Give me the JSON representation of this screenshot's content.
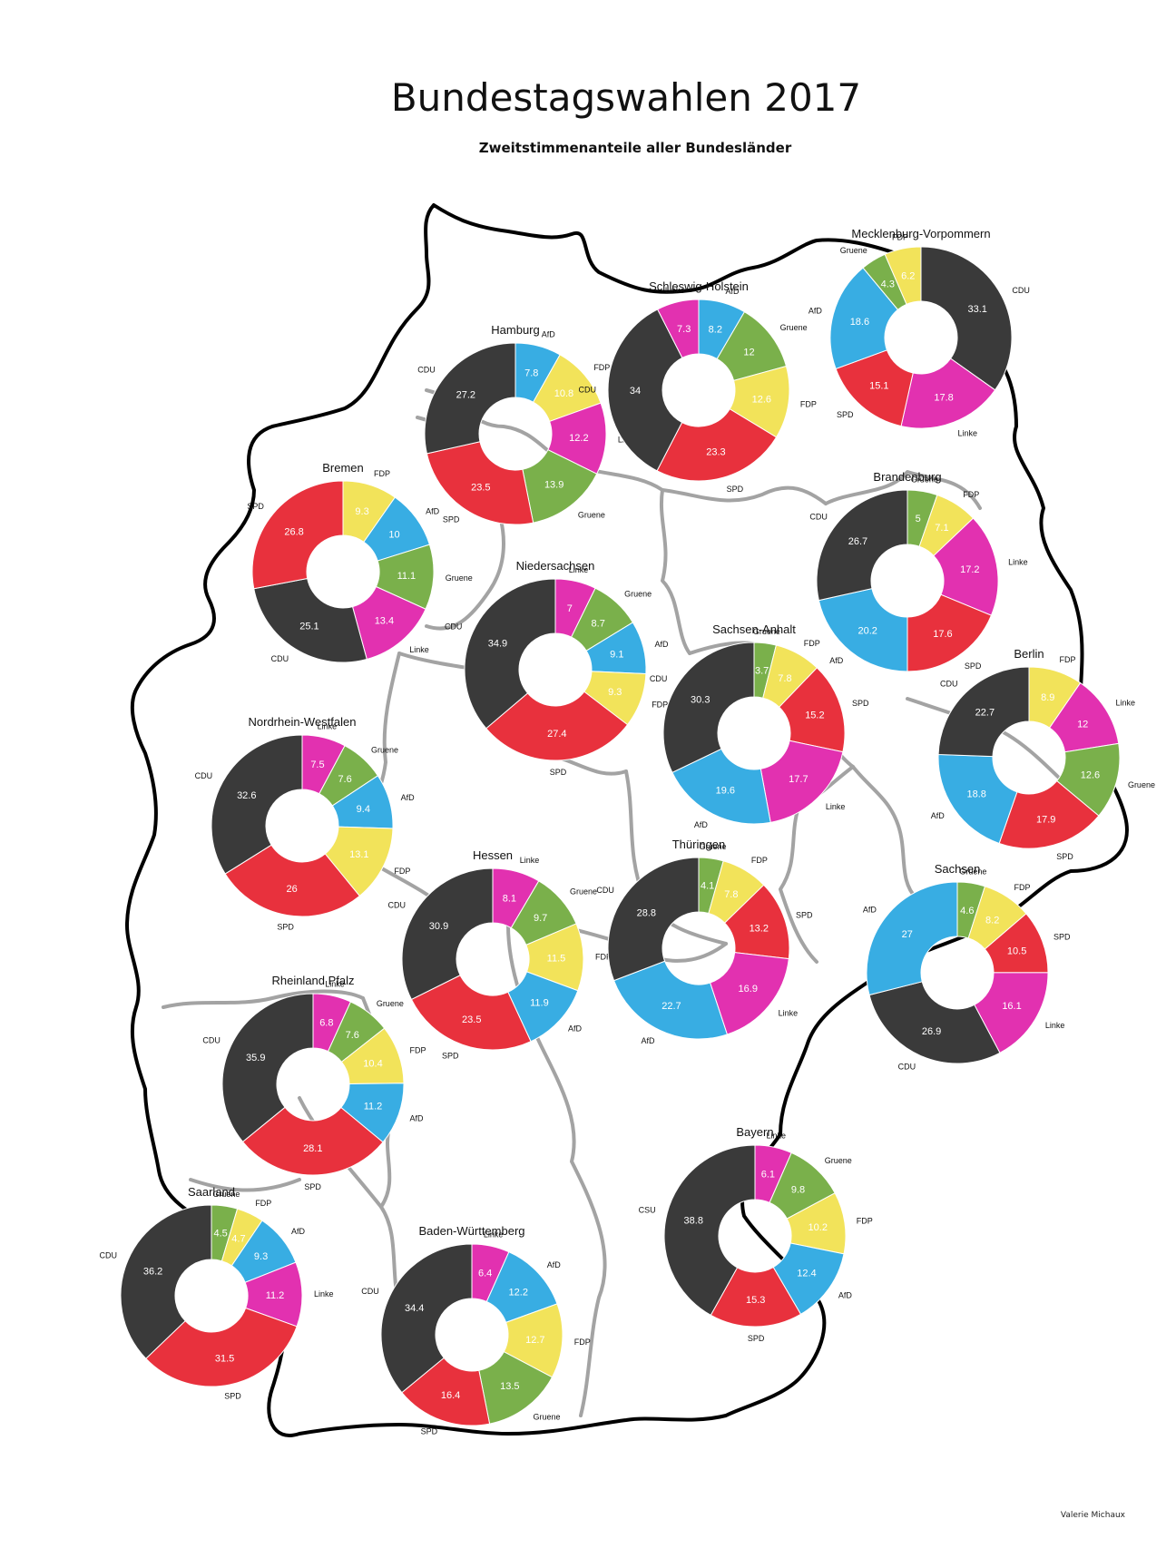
{
  "title": "Bundestagswahlen 2017",
  "subtitle": "Zweitstimmenanteile aller Bundesländer",
  "credit": "Valerie Michaux",
  "party_colors": {
    "CDU": "#3a3a3a",
    "CSU": "#3a3a3a",
    "SPD": "#e8313d",
    "Gruene": "#7ab04b",
    "FDP": "#f2e35a",
    "AfD": "#38ade3",
    "Linke": "#e231b0"
  },
  "chart_data": [
    {
      "type": "pie",
      "title": "Hamburg",
      "slices": [
        {
          "label": "AfD",
          "value": 7.8
        },
        {
          "label": "FDP",
          "value": 10.8
        },
        {
          "label": "Linke",
          "value": 12.2
        },
        {
          "label": "Gruene",
          "value": 13.9
        },
        {
          "label": "SPD",
          "value": 23.5
        },
        {
          "label": "CDU",
          "value": 27.2
        }
      ]
    },
    {
      "type": "pie",
      "title": "Schleswig-Holstein",
      "slices": [
        {
          "label": "AfD",
          "value": 8.2
        },
        {
          "label": "Gruene",
          "value": 12
        },
        {
          "label": "FDP",
          "value": 12.6
        },
        {
          "label": "SPD",
          "value": 23.3
        },
        {
          "label": "CDU",
          "value": 34
        },
        {
          "label": "Linke",
          "value": 7.3
        }
      ]
    },
    {
      "type": "pie",
      "title": "Mecklenburg-Vorpommern",
      "slices": [
        {
          "label": "CDU",
          "value": 33.1
        },
        {
          "label": "Linke",
          "value": 17.8
        },
        {
          "label": "SPD",
          "value": 15.1
        },
        {
          "label": "AfD",
          "value": 18.6
        },
        {
          "label": "Gruene",
          "value": 4.3
        },
        {
          "label": "FDP",
          "value": 6.2
        }
      ]
    },
    {
      "type": "pie",
      "title": "Bremen",
      "slices": [
        {
          "label": "FDP",
          "value": 9.3
        },
        {
          "label": "AfD",
          "value": 10
        },
        {
          "label": "Gruene",
          "value": 11.1
        },
        {
          "label": "Linke",
          "value": 13.4
        },
        {
          "label": "CDU",
          "value": 25.1
        },
        {
          "label": "SPD",
          "value": 26.8
        }
      ]
    },
    {
      "type": "pie",
      "title": "Niedersachsen",
      "slices": [
        {
          "label": "Linke",
          "value": 7
        },
        {
          "label": "Gruene",
          "value": 8.7
        },
        {
          "label": "AfD",
          "value": 9.1
        },
        {
          "label": "FDP",
          "value": 9.3
        },
        {
          "label": "SPD",
          "value": 27.4
        },
        {
          "label": "CDU",
          "value": 34.9
        }
      ]
    },
    {
      "type": "pie",
      "title": "Brandenburg",
      "slices": [
        {
          "label": "Gruene",
          "value": 5
        },
        {
          "label": "FDP",
          "value": 7.1
        },
        {
          "label": "Linke",
          "value": 17.2
        },
        {
          "label": "SPD",
          "value": 17.6
        },
        {
          "label": "AfD",
          "value": 20.2
        },
        {
          "label": "CDU",
          "value": 26.7
        }
      ]
    },
    {
      "type": "pie",
      "title": "Sachsen-Anhalt",
      "slices": [
        {
          "label": "Gruene",
          "value": 3.7
        },
        {
          "label": "FDP",
          "value": 7.8
        },
        {
          "label": "SPD",
          "value": 15.2
        },
        {
          "label": "Linke",
          "value": 17.7
        },
        {
          "label": "AfD",
          "value": 19.6
        },
        {
          "label": "CDU",
          "value": 30.3
        }
      ]
    },
    {
      "type": "pie",
      "title": "Berlin",
      "slices": [
        {
          "label": "FDP",
          "value": 8.9
        },
        {
          "label": "Linke",
          "value": 12
        },
        {
          "label": "Gruene",
          "value": 12.6
        },
        {
          "label": "SPD",
          "value": 17.9
        },
        {
          "label": "AfD",
          "value": 18.8
        },
        {
          "label": "CDU",
          "value": 22.7
        }
      ]
    },
    {
      "type": "pie",
      "title": "Nordrhein-Westfalen",
      "slices": [
        {
          "label": "Linke",
          "value": 7.5
        },
        {
          "label": "Gruene",
          "value": 7.6
        },
        {
          "label": "AfD",
          "value": 9.4
        },
        {
          "label": "FDP",
          "value": 13.1
        },
        {
          "label": "SPD",
          "value": 26
        },
        {
          "label": "CDU",
          "value": 32.6
        }
      ]
    },
    {
      "type": "pie",
      "title": "Hessen",
      "slices": [
        {
          "label": "Linke",
          "value": 8.1
        },
        {
          "label": "Gruene",
          "value": 9.7
        },
        {
          "label": "FDP",
          "value": 11.5
        },
        {
          "label": "AfD",
          "value": 11.9
        },
        {
          "label": "SPD",
          "value": 23.5
        },
        {
          "label": "CDU",
          "value": 30.9
        }
      ]
    },
    {
      "type": "pie",
      "title": "Thüringen",
      "slices": [
        {
          "label": "Gruene",
          "value": 4.1
        },
        {
          "label": "FDP",
          "value": 7.8
        },
        {
          "label": "SPD",
          "value": 13.2
        },
        {
          "label": "Linke",
          "value": 16.9
        },
        {
          "label": "AfD",
          "value": 22.7
        },
        {
          "label": "CDU",
          "value": 28.8
        }
      ]
    },
    {
      "type": "pie",
      "title": "Sachsen",
      "slices": [
        {
          "label": "Gruene",
          "value": 4.6
        },
        {
          "label": "FDP",
          "value": 8.2
        },
        {
          "label": "SPD",
          "value": 10.5
        },
        {
          "label": "Linke",
          "value": 16.1
        },
        {
          "label": "CDU",
          "value": 26.9
        },
        {
          "label": "AfD",
          "value": 27
        }
      ]
    },
    {
      "type": "pie",
      "title": "Rheinland Pfalz",
      "slices": [
        {
          "label": "Linke",
          "value": 6.8
        },
        {
          "label": "Gruene",
          "value": 7.6
        },
        {
          "label": "FDP",
          "value": 10.4
        },
        {
          "label": "AfD",
          "value": 11.2
        },
        {
          "label": "SPD",
          "value": 28.1
        },
        {
          "label": "CDU",
          "value": 35.9
        }
      ]
    },
    {
      "type": "pie",
      "title": "Bayern",
      "slices": [
        {
          "label": "Linke",
          "value": 6.1
        },
        {
          "label": "Gruene",
          "value": 9.8
        },
        {
          "label": "FDP",
          "value": 10.2
        },
        {
          "label": "AfD",
          "value": 12.4
        },
        {
          "label": "SPD",
          "value": 15.3
        },
        {
          "label": "CSU",
          "value": 38.8
        }
      ]
    },
    {
      "type": "pie",
      "title": "Saarland",
      "slices": [
        {
          "label": "Gruene",
          "value": 4.5
        },
        {
          "label": "FDP",
          "value": 4.7
        },
        {
          "label": "AfD",
          "value": 9.3
        },
        {
          "label": "Linke",
          "value": 11.2
        },
        {
          "label": "SPD",
          "value": 31.5
        },
        {
          "label": "CDU",
          "value": 36.2
        }
      ]
    },
    {
      "type": "pie",
      "title": "Baden-Württemberg",
      "slices": [
        {
          "label": "Linke",
          "value": 6.4
        },
        {
          "label": "AfD",
          "value": 12.2
        },
        {
          "label": "FDP",
          "value": 12.7
        },
        {
          "label": "Gruene",
          "value": 13.5
        },
        {
          "label": "SPD",
          "value": 16.4
        },
        {
          "label": "CDU",
          "value": 34.4
        }
      ]
    }
  ]
}
